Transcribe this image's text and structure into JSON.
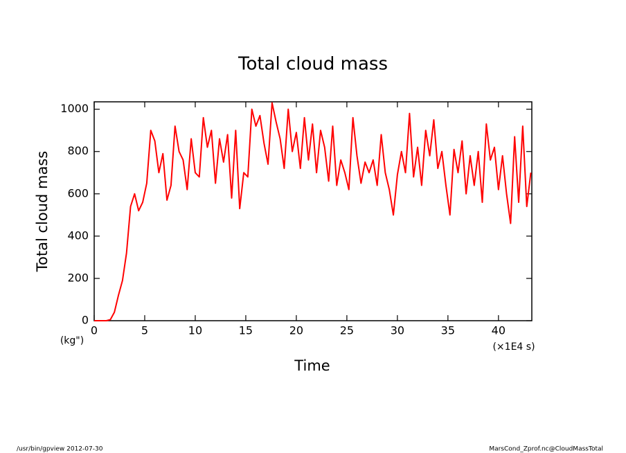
{
  "chart_data": {
    "type": "line",
    "title": "Total cloud mass",
    "y_label": "Total cloud mass",
    "y_unit": "(kg\")",
    "x_label": "Time",
    "x_unit": "(×1E4 s)",
    "footer_left": "/usr/bin/gpview  2012-07-30",
    "footer_right": "MarsCond_Zprof.nc@CloudMassTotal",
    "xlim": [
      0,
      43.3
    ],
    "ylim": [
      0,
      1035
    ],
    "xticks": [
      0,
      5,
      10,
      15,
      20,
      25,
      30,
      35,
      40
    ],
    "yticks": [
      0,
      200,
      400,
      600,
      800,
      1000
    ],
    "series": [
      {
        "color": "#ff0000",
        "x": [
          0,
          0.4,
          0.8,
          1.2,
          1.6,
          2.0,
          2.4,
          2.8,
          3.2,
          3.6,
          4.0,
          4.4,
          4.8,
          5.2,
          5.6,
          6.0,
          6.4,
          6.8,
          7.2,
          7.6,
          8.0,
          8.4,
          8.8,
          9.2,
          9.6,
          10.0,
          10.4,
          10.8,
          11.2,
          11.6,
          12.0,
          12.4,
          12.8,
          13.2,
          13.6,
          14.0,
          14.4,
          14.8,
          15.2,
          15.6,
          16.0,
          16.4,
          16.8,
          17.2,
          17.6,
          18.0,
          18.4,
          18.8,
          19.2,
          19.6,
          20.0,
          20.4,
          20.8,
          21.2,
          21.6,
          22.0,
          22.4,
          22.8,
          23.2,
          23.6,
          24.0,
          24.4,
          24.8,
          25.2,
          25.6,
          26.0,
          26.4,
          26.8,
          27.2,
          27.6,
          28.0,
          28.4,
          28.8,
          29.2,
          29.6,
          30.0,
          30.4,
          30.8,
          31.2,
          31.6,
          32.0,
          32.4,
          32.8,
          33.2,
          33.6,
          34.0,
          34.4,
          34.8,
          35.2,
          35.6,
          36.0,
          36.4,
          36.8,
          37.2,
          37.6,
          38.0,
          38.4,
          38.8,
          39.2,
          39.6,
          40.0,
          40.4,
          40.8,
          41.2,
          41.6,
          42.0,
          42.4,
          42.8,
          43.2
        ],
        "values": [
          0,
          0,
          0,
          0,
          5,
          40,
          120,
          190,
          320,
          540,
          600,
          520,
          560,
          650,
          900,
          850,
          700,
          790,
          570,
          640,
          920,
          800,
          760,
          620,
          860,
          700,
          680,
          960,
          820,
          900,
          650,
          860,
          750,
          880,
          580,
          900,
          530,
          700,
          680,
          1000,
          920,
          970,
          840,
          740,
          1030,
          940,
          860,
          720,
          1000,
          800,
          890,
          720,
          960,
          760,
          930,
          700,
          900,
          820,
          660,
          920,
          640,
          760,
          700,
          620,
          960,
          780,
          650,
          750,
          700,
          760,
          640,
          880,
          700,
          620,
          500,
          690,
          800,
          700,
          980,
          680,
          820,
          640,
          900,
          780,
          950,
          720,
          800,
          640,
          500,
          810,
          700,
          850,
          600,
          780,
          640,
          800,
          560,
          930,
          760,
          820,
          620,
          780,
          600,
          460,
          870,
          560,
          920,
          540,
          700
        ]
      }
    ]
  }
}
